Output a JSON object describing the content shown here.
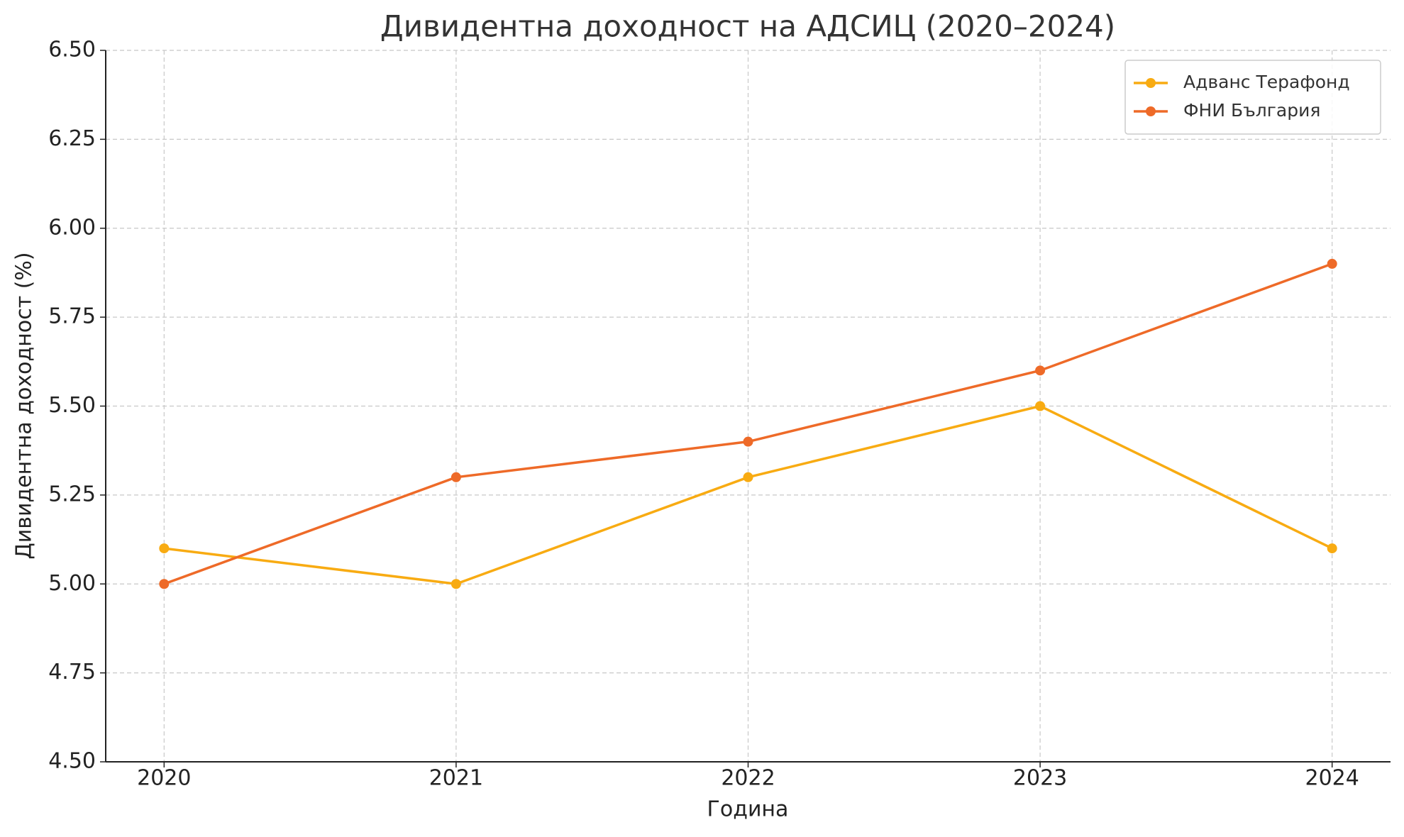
{
  "chart_data": {
    "type": "line",
    "title": "Дивидентна доходност на АДСИЦ (2020–2024)",
    "x_label": "Година",
    "y_label": "Дивидентна доходност (%)",
    "x": [
      2020,
      2021,
      2022,
      2023,
      2024
    ],
    "series": [
      {
        "name": "Адванс Терафонд",
        "color": "#f8ab12",
        "values": [
          5.1,
          5.0,
          5.3,
          5.5,
          5.1
        ]
      },
      {
        "name": "ФНИ България",
        "color": "#ee6a28",
        "values": [
          5.0,
          5.3,
          5.4,
          5.6,
          5.9
        ]
      }
    ],
    "xlim": [
      2019.8,
      2024.2
    ],
    "xticks": [
      2020,
      2021,
      2022,
      2023,
      2024
    ],
    "ylim": [
      4.5,
      6.5
    ],
    "yticks": [
      {
        "value": 4.5,
        "label": "4.50"
      },
      {
        "value": 4.75,
        "label": "4.75"
      },
      {
        "value": 5.0,
        "label": "5.00"
      },
      {
        "value": 5.25,
        "label": "5.25"
      },
      {
        "value": 5.5,
        "label": "5.50"
      },
      {
        "value": 5.75,
        "label": "5.75"
      },
      {
        "value": 6.0,
        "label": "6.00"
      },
      {
        "value": 6.25,
        "label": "6.25"
      },
      {
        "value": 6.5,
        "label": "6.50"
      }
    ],
    "grid": true,
    "legend": "upper right"
  }
}
